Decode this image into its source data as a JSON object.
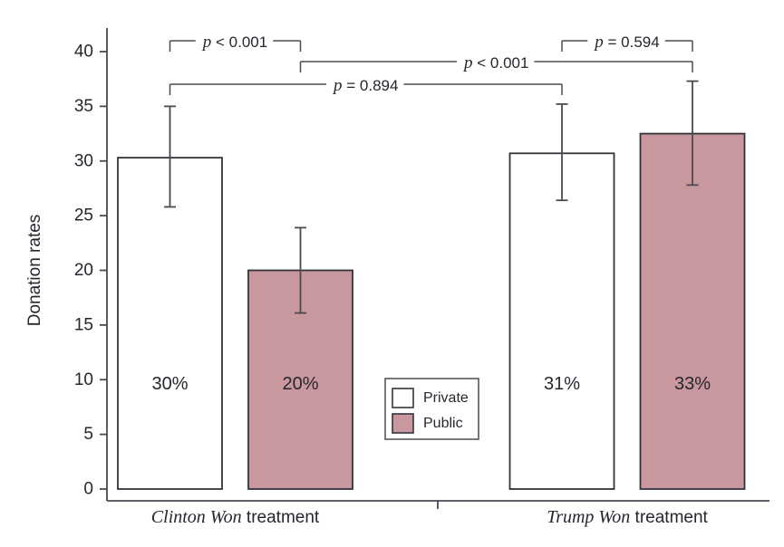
{
  "chart_data": {
    "type": "bar",
    "title": "",
    "ylabel": "Donation rates",
    "xlabel": "",
    "ylim": [
      0,
      40
    ],
    "yticks": [
      0,
      5,
      10,
      15,
      20,
      25,
      30,
      35,
      40
    ],
    "grid": false,
    "legend_position": "inside-bottom-center",
    "groups": [
      {
        "label_emph": "Clinton Won",
        "label_rest": " treatment",
        "bars": [
          {
            "id": "clinton-private",
            "series": "Private",
            "value": 30.3,
            "label": "30%",
            "ci": [
              25.8,
              35.0
            ]
          },
          {
            "id": "clinton-public",
            "series": "Public",
            "value": 20.0,
            "label": "20%",
            "ci": [
              16.1,
              23.9
            ]
          }
        ]
      },
      {
        "label_emph": "Trump Won",
        "label_rest": " treatment",
        "bars": [
          {
            "id": "trump-private",
            "series": "Private",
            "value": 30.7,
            "label": "31%",
            "ci": [
              26.4,
              35.2
            ]
          },
          {
            "id": "trump-public",
            "series": "Public",
            "value": 32.5,
            "label": "33%",
            "ci": [
              27.8,
              37.3
            ]
          }
        ]
      }
    ],
    "significance_brackets": [
      {
        "label": "p < 0.001",
        "from": "clinton-private",
        "to": "clinton-public",
        "tier": 1
      },
      {
        "label": "p = 0.594",
        "from": "trump-private",
        "to": "trump-public",
        "tier": 1
      },
      {
        "label": "p < 0.001",
        "from": "clinton-public",
        "to": "trump-public",
        "tier": 2
      },
      {
        "label": "p = 0.894",
        "from": "clinton-private",
        "to": "trump-private",
        "tier": 3
      }
    ],
    "legend": [
      {
        "label": "Private",
        "fill": "#ffffff"
      },
      {
        "label": "Public",
        "fill": "#c9989e"
      }
    ],
    "colors": {
      "private_fill": "#ffffff",
      "public_fill": "#c9989e",
      "bar_border": "#33333c",
      "line": "#4a4a53",
      "text": "#26262e"
    }
  }
}
